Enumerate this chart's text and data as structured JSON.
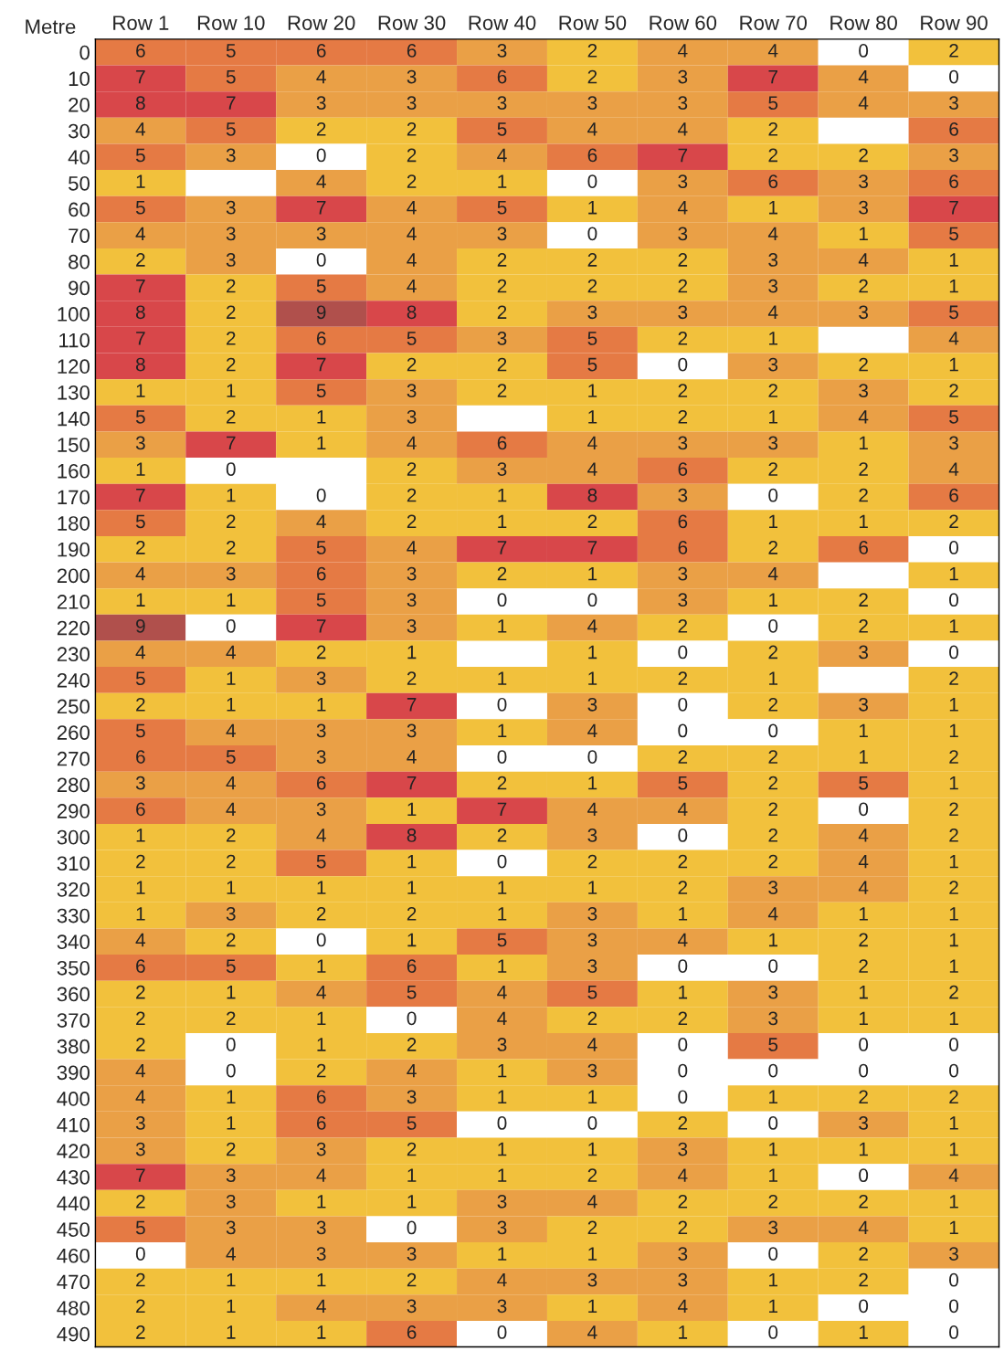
{
  "chart_data": {
    "type": "heatmap",
    "ylabel": "Metre",
    "categories": [
      "Row 1",
      "Row 10",
      "Row 20",
      "Row 30",
      "Row 40",
      "Row 50",
      "Row 60",
      "Row 70",
      "Row 80",
      "Row 90"
    ],
    "y_categories": [
      "0",
      "10",
      "20",
      "30",
      "40",
      "50",
      "60",
      "70",
      "80",
      "90",
      "100",
      "110",
      "120",
      "130",
      "140",
      "150",
      "160",
      "170",
      "180",
      "190",
      "200",
      "210",
      "220",
      "230",
      "240",
      "250",
      "260",
      "270",
      "280",
      "290",
      "300",
      "310",
      "320",
      "330",
      "340",
      "350",
      "360",
      "370",
      "380",
      "390",
      "400",
      "410",
      "420",
      "430",
      "440",
      "450",
      "460",
      "470",
      "480",
      "490"
    ],
    "colors": [
      "#ffffff",
      "#f2c13c",
      "#f2c13c",
      "#eaa046",
      "#eaa046",
      "#e57a44",
      "#e57a44",
      "#d8474a",
      "#d8474a",
      "#b0504c"
    ],
    "cells": [
      [
        6,
        5,
        6,
        6,
        3,
        2,
        4,
        4,
        0,
        2
      ],
      [
        7,
        5,
        4,
        3,
        6,
        2,
        3,
        7,
        4,
        0
      ],
      [
        8,
        7,
        3,
        3,
        3,
        3,
        3,
        5,
        4,
        3
      ],
      [
        4,
        5,
        2,
        2,
        5,
        4,
        4,
        2,
        null,
        6
      ],
      [
        5,
        3,
        0,
        2,
        4,
        6,
        7,
        2,
        2,
        3
      ],
      [
        1,
        null,
        4,
        2,
        1,
        0,
        3,
        6,
        3,
        6
      ],
      [
        5,
        3,
        7,
        4,
        5,
        1,
        4,
        1,
        3,
        7
      ],
      [
        4,
        3,
        3,
        4,
        3,
        0,
        3,
        4,
        1,
        5
      ],
      [
        2,
        3,
        0,
        4,
        2,
        2,
        2,
        3,
        4,
        1
      ],
      [
        7,
        2,
        5,
        4,
        2,
        2,
        2,
        3,
        2,
        1
      ],
      [
        8,
        2,
        9,
        8,
        2,
        3,
        3,
        4,
        3,
        5
      ],
      [
        7,
        2,
        6,
        5,
        3,
        5,
        2,
        1,
        null,
        4
      ],
      [
        8,
        2,
        7,
        2,
        2,
        5,
        0,
        3,
        2,
        1
      ],
      [
        1,
        1,
        5,
        3,
        2,
        1,
        2,
        2,
        3,
        2
      ],
      [
        5,
        2,
        1,
        3,
        null,
        1,
        2,
        1,
        4,
        5
      ],
      [
        3,
        7,
        1,
        4,
        6,
        4,
        3,
        3,
        1,
        3
      ],
      [
        1,
        0,
        null,
        2,
        3,
        4,
        6,
        2,
        2,
        4
      ],
      [
        7,
        1,
        0,
        2,
        1,
        8,
        3,
        0,
        2,
        6
      ],
      [
        5,
        2,
        4,
        2,
        1,
        2,
        6,
        1,
        1,
        2
      ],
      [
        2,
        2,
        5,
        4,
        7,
        7,
        6,
        2,
        6,
        0
      ],
      [
        4,
        3,
        6,
        3,
        2,
        1,
        3,
        4,
        null,
        1
      ],
      [
        1,
        1,
        5,
        3,
        0,
        0,
        3,
        1,
        2,
        0
      ],
      [
        9,
        0,
        7,
        3,
        1,
        4,
        2,
        0,
        2,
        1
      ],
      [
        4,
        4,
        2,
        1,
        null,
        1,
        0,
        2,
        3,
        0
      ],
      [
        5,
        1,
        3,
        2,
        1,
        1,
        2,
        1,
        null,
        2
      ],
      [
        2,
        1,
        1,
        7,
        0,
        3,
        0,
        2,
        3,
        1
      ],
      [
        5,
        4,
        3,
        3,
        1,
        4,
        0,
        0,
        1,
        1
      ],
      [
        6,
        5,
        3,
        4,
        0,
        0,
        2,
        2,
        1,
        2
      ],
      [
        3,
        4,
        6,
        7,
        2,
        1,
        5,
        2,
        5,
        1
      ],
      [
        6,
        4,
        3,
        1,
        7,
        4,
        4,
        2,
        0,
        2
      ],
      [
        1,
        2,
        4,
        8,
        2,
        3,
        0,
        2,
        4,
        2
      ],
      [
        2,
        2,
        5,
        1,
        0,
        2,
        2,
        2,
        4,
        1
      ],
      [
        1,
        1,
        1,
        1,
        1,
        1,
        2,
        3,
        4,
        2
      ],
      [
        1,
        3,
        2,
        2,
        1,
        3,
        1,
        4,
        1,
        1
      ],
      [
        4,
        2,
        0,
        1,
        5,
        3,
        4,
        1,
        2,
        1
      ],
      [
        6,
        5,
        1,
        6,
        1,
        3,
        0,
        0,
        2,
        1
      ],
      [
        2,
        1,
        4,
        5,
        4,
        5,
        1,
        3,
        1,
        2
      ],
      [
        2,
        2,
        1,
        0,
        4,
        2,
        2,
        3,
        1,
        1
      ],
      [
        2,
        0,
        1,
        2,
        3,
        4,
        0,
        5,
        0,
        0
      ],
      [
        4,
        0,
        2,
        4,
        1,
        3,
        0,
        0,
        0,
        0
      ],
      [
        4,
        1,
        6,
        3,
        1,
        1,
        0,
        1,
        2,
        2
      ],
      [
        3,
        1,
        6,
        5,
        0,
        0,
        2,
        0,
        3,
        1
      ],
      [
        3,
        2,
        3,
        2,
        1,
        1,
        3,
        1,
        1,
        1
      ],
      [
        7,
        3,
        4,
        1,
        1,
        2,
        4,
        1,
        0,
        4
      ],
      [
        2,
        3,
        1,
        1,
        3,
        4,
        2,
        2,
        2,
        1
      ],
      [
        5,
        3,
        3,
        0,
        3,
        2,
        2,
        3,
        4,
        1
      ],
      [
        0,
        4,
        3,
        3,
        1,
        1,
        3,
        0,
        2,
        3
      ],
      [
        2,
        1,
        1,
        2,
        4,
        3,
        3,
        1,
        2,
        0
      ],
      [
        2,
        1,
        4,
        3,
        3,
        1,
        4,
        1,
        0,
        0
      ],
      [
        2,
        1,
        1,
        6,
        0,
        4,
        1,
        0,
        1,
        0
      ]
    ],
    "cell_labels": [
      [
        "6",
        "5",
        "6",
        "6",
        "3",
        "2",
        "4",
        "4",
        "0",
        "2"
      ],
      [
        "7",
        "5",
        "4",
        "3",
        "6",
        "2",
        "3",
        "7",
        "4",
        "0"
      ],
      [
        "8",
        "7",
        "3",
        "3",
        "3",
        "3",
        "3",
        "5",
        "4",
        "3"
      ],
      [
        "4",
        "5",
        "2",
        "2",
        "5",
        "4",
        "4",
        "2",
        null,
        "6"
      ],
      [
        "5",
        "3",
        "0",
        "2",
        "4",
        "6",
        "7",
        "2",
        "2",
        "3"
      ],
      [
        "1",
        null,
        "4",
        "2",
        "1",
        "0",
        "3",
        "6",
        "3",
        "6"
      ],
      [
        "5",
        "3",
        "7",
        "4",
        "5",
        "1",
        "4",
        "1",
        "3",
        "7"
      ],
      [
        "4",
        "3",
        "3",
        "4",
        "3",
        "0",
        "3",
        "4",
        "1",
        "5"
      ],
      [
        "2",
        "3",
        "0",
        "4",
        "2",
        "2",
        "2",
        "3",
        "4",
        "1"
      ],
      [
        "7",
        "2",
        "5",
        "4",
        "2",
        "2",
        "2",
        "3",
        "2",
        "1"
      ],
      [
        "8",
        "2",
        "9",
        "8",
        "2",
        "3",
        "3",
        "4",
        "3",
        "5"
      ],
      [
        "7",
        "2",
        "6",
        "5",
        "3",
        "5",
        "2",
        "1",
        null,
        "4"
      ],
      [
        "8",
        "2",
        "7",
        "2",
        "2",
        "5",
        "0",
        "3",
        "2",
        "1"
      ],
      [
        "1",
        "1",
        "5",
        "3",
        "2",
        "1",
        "2",
        "2",
        "3",
        "2"
      ],
      [
        "5",
        "2",
        "1",
        "3",
        null,
        "1",
        "2",
        "1",
        "4",
        "5"
      ],
      [
        "3",
        "7",
        "1",
        "4",
        "6",
        "4",
        "3",
        "3",
        "1",
        "3"
      ],
      [
        "1",
        "0",
        null,
        "2",
        "3",
        "4",
        "6",
        "2",
        "2",
        "4"
      ],
      [
        "7",
        "1",
        "0",
        "2",
        "1",
        "8",
        "3",
        "0",
        "2",
        "6"
      ],
      [
        "5",
        "2",
        "4",
        "2",
        "1",
        "2",
        "6",
        "1",
        "1",
        "2"
      ],
      [
        "2",
        "2",
        "5",
        "4",
        "7",
        "7",
        "6",
        "2",
        "6",
        "0"
      ],
      [
        "4",
        "3",
        "6",
        "3",
        "2",
        "1",
        "3",
        "4",
        null,
        "1"
      ],
      [
        "1",
        "1",
        "5",
        "3",
        "0",
        "0",
        "3",
        "1",
        "2",
        "0"
      ],
      [
        "9",
        "0",
        "7",
        "3",
        "1",
        "4",
        "2",
        "0",
        "2",
        "1"
      ],
      [
        "4",
        "4",
        "2",
        "1",
        null,
        "1",
        "0",
        "2",
        "3",
        "0"
      ],
      [
        "5",
        "1",
        "3",
        "2",
        "1",
        "1",
        "2",
        "1",
        null,
        "2"
      ],
      [
        "2",
        "1",
        "1",
        "7",
        "0",
        "3",
        "0",
        "2",
        "3",
        "1"
      ],
      [
        "5",
        "4",
        "3",
        "3",
        "1",
        "4",
        "0",
        "0",
        "1",
        "1"
      ],
      [
        "6",
        "5",
        "3",
        "4",
        "0",
        "0",
        "2",
        "2",
        "1",
        "2"
      ],
      [
        "3",
        "4",
        "6",
        "7",
        "2",
        "1",
        "5",
        "2",
        "5",
        "1"
      ],
      [
        "6",
        "4",
        "3",
        "1",
        "7",
        "4",
        "4",
        "2",
        "0",
        "2"
      ],
      [
        "1",
        "2",
        "4",
        "8",
        "2",
        "3",
        "0",
        "2",
        "4",
        "2"
      ],
      [
        "2",
        "2",
        "5",
        "1",
        "0",
        "2",
        "2",
        "2",
        "4",
        "1"
      ],
      [
        "1",
        "1",
        "1",
        "1",
        "1",
        "1",
        "2",
        "3",
        "4",
        "2"
      ],
      [
        "1",
        "3",
        "2",
        "2",
        "1",
        "3",
        "1",
        "4",
        "1",
        "1"
      ],
      [
        "4",
        "2",
        "0",
        "1",
        "5",
        "3",
        "4",
        "1",
        "2",
        "1"
      ],
      [
        "6",
        "5",
        "1",
        "6",
        "1",
        "3",
        "0",
        "0",
        "2",
        "1"
      ],
      [
        "2",
        "1",
        "4",
        "5",
        "4",
        "5",
        "1",
        "3",
        "1",
        "2"
      ],
      [
        "2",
        "2",
        "1",
        "0",
        "4",
        "2",
        "2",
        "3",
        "1",
        "1"
      ],
      [
        "2",
        "0",
        "1",
        "2",
        "3",
        "4",
        "0",
        "5",
        "0",
        "0"
      ],
      [
        "4",
        "0",
        "2",
        "4",
        "1",
        "3",
        "0",
        "0",
        "0",
        "0"
      ],
      [
        "4",
        "1",
        "6",
        "3",
        "1",
        "1",
        "0",
        "1",
        "2",
        "2"
      ],
      [
        "3",
        "1",
        "6",
        "5",
        "0",
        "0",
        "2",
        "0",
        "3",
        "1"
      ],
      [
        "3",
        "2",
        "3",
        "2",
        "1",
        "1",
        "3",
        "1",
        "1",
        "1"
      ],
      [
        "7",
        "3",
        "4",
        "1",
        "1",
        "2",
        "4",
        "1",
        "0",
        "4"
      ],
      [
        "2",
        "3",
        "1",
        "1",
        "3",
        "4",
        "2",
        "2",
        "2",
        "1"
      ],
      [
        "5",
        "3",
        "3",
        "0",
        "3",
        "2",
        "2",
        "3",
        "4",
        "1"
      ],
      [
        "0",
        "4",
        "3",
        "3",
        "1",
        "1",
        "3",
        "0",
        "2",
        "3"
      ],
      [
        "2",
        "1",
        "1",
        "2",
        "4",
        "3",
        "3",
        "1",
        "2",
        "0"
      ],
      [
        "2",
        "1",
        "4",
        "3",
        "3",
        "1",
        "4",
        "1",
        "0",
        "0"
      ],
      [
        "2",
        "1",
        "1",
        "6",
        "0",
        "4",
        "1",
        "0",
        "1",
        "0"
      ]
    ]
  }
}
